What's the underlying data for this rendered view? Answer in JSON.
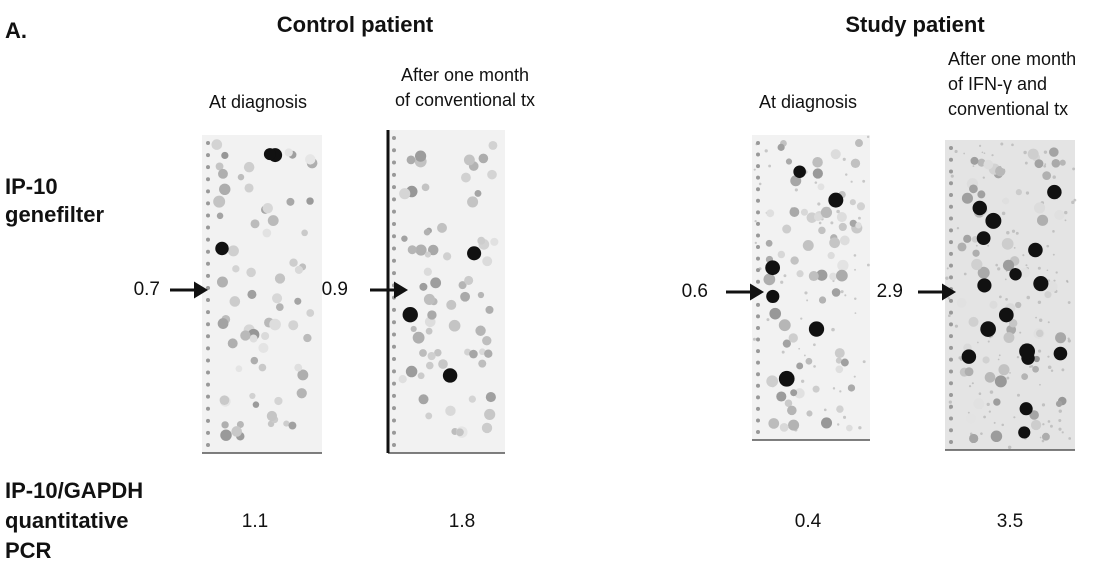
{
  "panel_label": "A.",
  "row_labels": {
    "genefilter": [
      "IP-10",
      "genefilter"
    ],
    "pcr": [
      "IP-10/GAPDH",
      "quantitative",
      "PCR"
    ]
  },
  "groups": [
    {
      "title": "Control patient",
      "columns": [
        {
          "label": [
            "At diagnosis"
          ],
          "genefilter": 0.7,
          "pcr": 1.1
        },
        {
          "label": [
            "After one month",
            "of conventional tx"
          ],
          "genefilter": 0.9,
          "pcr": 1.8
        }
      ]
    },
    {
      "title": "Study patient",
      "columns": [
        {
          "label": [
            "At diagnosis"
          ],
          "genefilter": 0.6,
          "pcr": 0.4
        },
        {
          "label": [
            "After one month",
            "of IFN-γ and",
            "conventional tx"
          ],
          "genefilter": 2.9,
          "pcr": 3.5
        }
      ]
    }
  ]
}
